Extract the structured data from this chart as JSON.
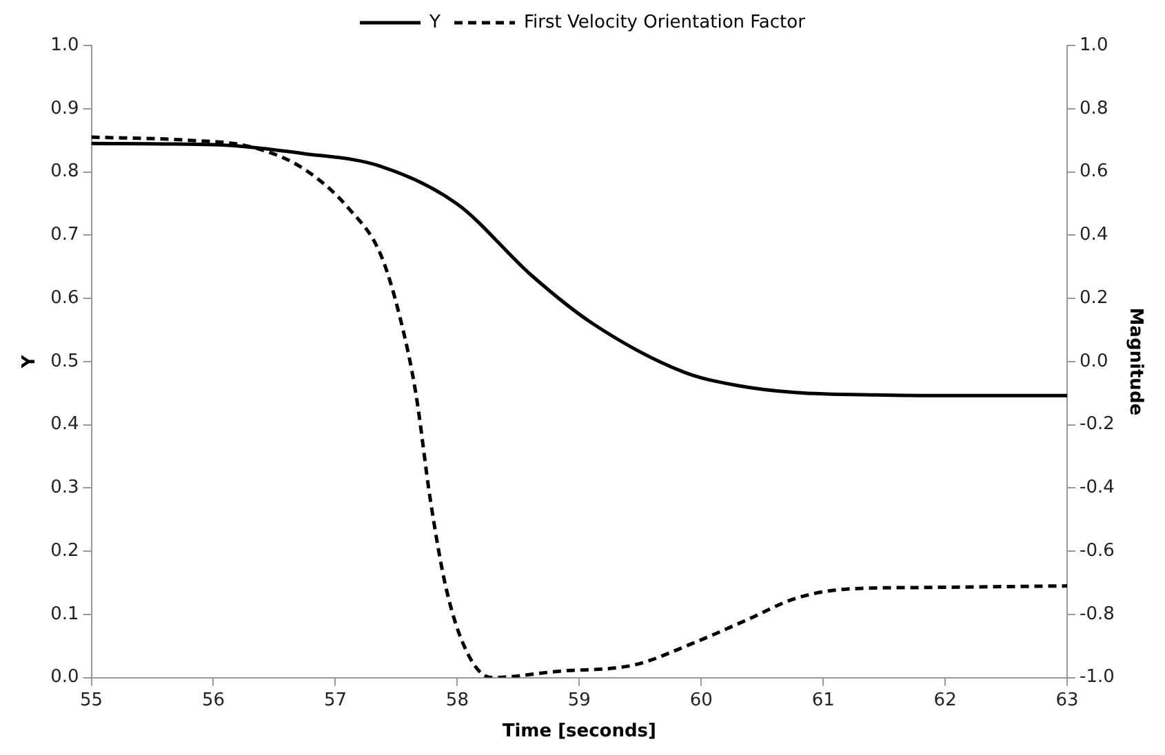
{
  "chart_data": {
    "type": "line",
    "xlabel": "Time [seconds]",
    "ylabel": "Y",
    "y2label": "Magnitude",
    "legend": "top",
    "grid": false,
    "marker": "none",
    "xlim": [
      55,
      63
    ],
    "xticks": [
      55,
      56,
      57,
      58,
      59,
      60,
      61,
      62,
      63
    ],
    "ylim": [
      0,
      1
    ],
    "yticks": [
      {
        "value": 0,
        "label": "0.0"
      },
      0.1,
      0.2,
      0.3,
      0.4,
      0.5,
      0.6,
      0.7,
      0.8,
      0.9,
      {
        "value": 1,
        "label": "1.0"
      }
    ],
    "y2lim": [
      -1,
      1
    ],
    "y2ticks": [
      {
        "value": -1,
        "label": "-1.0"
      },
      -0.8,
      -0.6,
      -0.4,
      -0.2,
      {
        "value": 0,
        "label": "0.0"
      },
      0.2,
      0.4,
      0.6,
      0.8,
      {
        "value": 1,
        "label": "1.0"
      }
    ],
    "series": [
      {
        "name": "Y",
        "color": "#000000",
        "line_style": "solid",
        "x": [
          55,
          56,
          56.74,
          57.37,
          58.0,
          58.61,
          59.11,
          59.86,
          60.3,
          60.77,
          61.5,
          62.2,
          63
        ],
        "values": [
          0.845,
          0.843,
          0.829,
          0.809,
          0.749,
          0.636,
          0.56,
          0.483,
          0.462,
          0.451,
          0.447,
          0.446,
          0.446
        ]
      },
      {
        "name": "First Velocity Orientation Factor",
        "color": "#000000",
        "line_style": "dashed",
        "axis": "y2",
        "x": [
          55,
          55.8,
          56.3,
          56.74,
          57.12,
          57.37,
          57.53,
          57.66,
          57.78,
          57.91,
          58.08,
          58.28,
          58.83,
          59.45,
          59.94,
          60.36,
          60.77,
          61.19,
          61.81,
          63
        ],
        "values": [
          0.71,
          0.7,
          0.68,
          0.61,
          0.48,
          0.34,
          0.14,
          -0.1,
          -0.44,
          -0.72,
          -0.92,
          -1.0,
          -0.98,
          -0.96,
          -0.89,
          -0.82,
          -0.75,
          -0.72,
          -0.715,
          -0.71
        ]
      }
    ]
  }
}
